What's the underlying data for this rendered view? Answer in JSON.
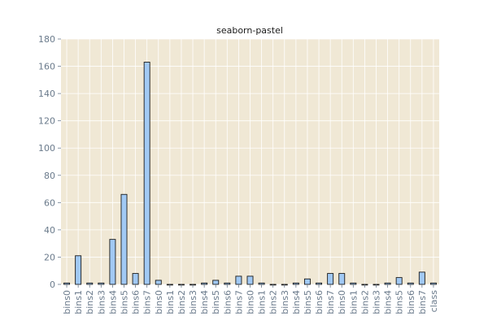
{
  "colors": {
    "plot_bg": "#f0e8d5",
    "bar_fill": "#a1c9f4",
    "bar_edge": "#1a1a1a",
    "grid": "#ffffff",
    "tick_text": "#6b7b8c"
  },
  "chart_data": {
    "type": "bar",
    "title": "seaborn-pastel",
    "xlabel": "",
    "ylabel": "",
    "ylim": [
      0,
      180
    ],
    "yticks": [
      0,
      20,
      40,
      60,
      80,
      100,
      120,
      140,
      160,
      180
    ],
    "grid": true,
    "categories": [
      "bins0",
      "bins1",
      "bins2",
      "bins3",
      "bins4",
      "bins5",
      "bins6",
      "bins7",
      "bins0",
      "bins1",
      "bins2",
      "bins3",
      "bins4",
      "bins5",
      "bins6",
      "bins7",
      "bins0",
      "bins1",
      "bins2",
      "bins3",
      "bins4",
      "bins5",
      "bins6",
      "bins7",
      "bins0",
      "bins1",
      "bins2",
      "bins3",
      "bins4",
      "bins5",
      "bins6",
      "bins7",
      "class"
    ],
    "values": [
      1,
      21,
      1,
      1,
      33,
      66,
      8,
      163,
      3,
      0,
      0,
      0,
      1,
      3,
      1,
      6,
      6,
      1,
      0,
      0,
      1,
      4,
      1,
      8,
      8,
      1,
      0,
      0,
      1,
      5,
      1,
      9,
      1
    ]
  }
}
